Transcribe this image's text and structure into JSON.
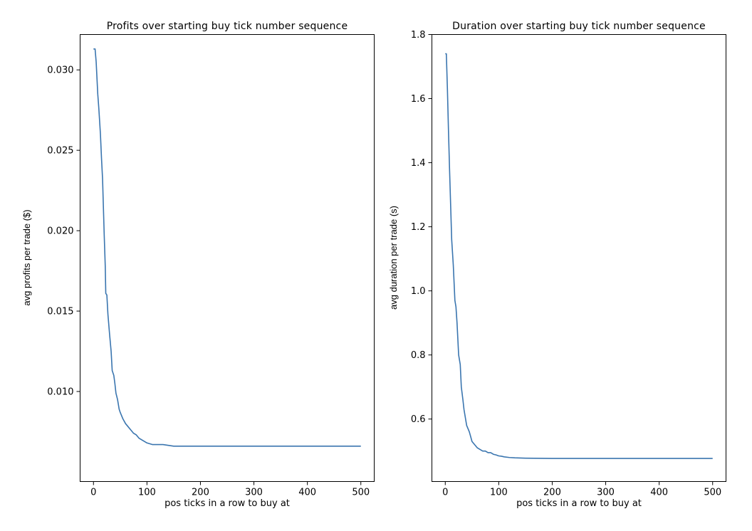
{
  "chart_data": [
    {
      "type": "line",
      "title": "Profits over starting buy tick number sequence",
      "xlabel": "pos ticks in a row to buy at",
      "ylabel": "avg profits per trade ($)",
      "xlim": [
        -25,
        525
      ],
      "ylim": [
        0.0044,
        0.0322
      ],
      "xticks": [
        0,
        100,
        200,
        300,
        400,
        500
      ],
      "xtick_labels": [
        "0",
        "100",
        "200",
        "300",
        "400",
        "500"
      ],
      "yticks": [
        0.01,
        0.015,
        0.02,
        0.025,
        0.03
      ],
      "ytick_labels": [
        "0.010",
        "0.015",
        "0.020",
        "0.025",
        "0.030"
      ],
      "grid": false,
      "color": "#3a75af",
      "series": [
        {
          "x": [
            0,
            3,
            5,
            8,
            10,
            13,
            15,
            17,
            20,
            22,
            23,
            25,
            27,
            30,
            33,
            35,
            38,
            40,
            42,
            45,
            48,
            50,
            55,
            60,
            65,
            70,
            75,
            80,
            85,
            90,
            95,
            100,
            110,
            120,
            130,
            150,
            170,
            200,
            250,
            300,
            350,
            400,
            450,
            500
          ],
          "y": [
            0.0313,
            0.0313,
            0.0305,
            0.0285,
            0.0276,
            0.026,
            0.0245,
            0.0232,
            0.0198,
            0.0178,
            0.0161,
            0.016,
            0.0148,
            0.0136,
            0.0125,
            0.0113,
            0.011,
            0.0105,
            0.0099,
            0.0095,
            0.0089,
            0.0087,
            0.0083,
            0.008,
            0.0078,
            0.0076,
            0.0074,
            0.0073,
            0.0071,
            0.007,
            0.0069,
            0.0068,
            0.0067,
            0.0067,
            0.0067,
            0.0066,
            0.0066,
            0.0066,
            0.0066,
            0.0066,
            0.0066,
            0.0066,
            0.0066,
            0.0066
          ]
        }
      ]
    },
    {
      "type": "line",
      "title": "Duration over starting buy tick number sequence",
      "xlabel": "pos ticks in a row to buy at",
      "ylabel": "avg duration per trade (s)",
      "xlim": [
        -25,
        525
      ],
      "ylim": [
        0.405,
        1.8
      ],
      "xticks": [
        0,
        100,
        200,
        300,
        400,
        500
      ],
      "xtick_labels": [
        "0",
        "100",
        "200",
        "300",
        "400",
        "500"
      ],
      "yticks": [
        0.6,
        0.8,
        1.0,
        1.2,
        1.4,
        1.6,
        1.8
      ],
      "ytick_labels": [
        "0.6",
        "0.8",
        "1.0",
        "1.2",
        "1.4",
        "1.6",
        "1.8"
      ],
      "grid": false,
      "color": "#3a75af",
      "series": [
        {
          "x": [
            0,
            2,
            4,
            6,
            8,
            10,
            12,
            15,
            18,
            20,
            22,
            25,
            28,
            30,
            33,
            35,
            38,
            40,
            45,
            50,
            55,
            60,
            65,
            70,
            75,
            80,
            85,
            90,
            95,
            100,
            105,
            110,
            120,
            130,
            150,
            200,
            250,
            300,
            350,
            400,
            450,
            500
          ],
          "y": [
            1.74,
            1.74,
            1.63,
            1.5,
            1.38,
            1.27,
            1.16,
            1.08,
            0.97,
            0.95,
            0.9,
            0.8,
            0.77,
            0.7,
            0.66,
            0.63,
            0.6,
            0.58,
            0.56,
            0.53,
            0.52,
            0.51,
            0.505,
            0.5,
            0.5,
            0.495,
            0.495,
            0.49,
            0.488,
            0.485,
            0.484,
            0.482,
            0.48,
            0.479,
            0.478,
            0.477,
            0.477,
            0.477,
            0.477,
            0.477,
            0.477,
            0.477
          ]
        }
      ]
    }
  ]
}
